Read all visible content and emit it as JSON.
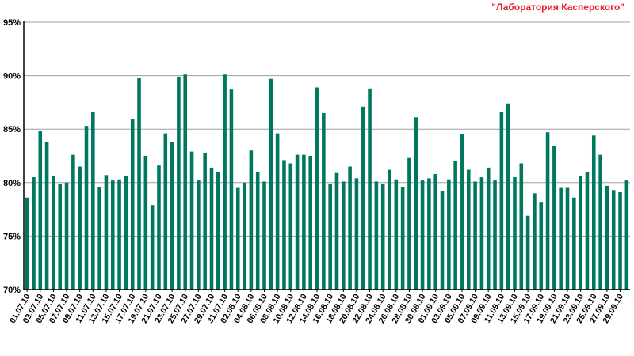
{
  "watermark": "\"Лаборатория Касперского\"",
  "colors": {
    "bar": "#00785f",
    "grid": "#a0a0a0",
    "axis": "#000000",
    "watermark": "#e8202a"
  },
  "chart_data": {
    "type": "bar",
    "title": "",
    "xlabel": "",
    "ylabel": "",
    "ylim": [
      70,
      95
    ],
    "y_ticks": [
      "70%",
      "75%",
      "80%",
      "85%",
      "90%",
      "95%"
    ],
    "y_tick_values": [
      70,
      75,
      80,
      85,
      90,
      95
    ],
    "grid": true,
    "categories": [
      "01.07.10",
      "02.07.10",
      "03.07.10",
      "04.07.10",
      "05.07.10",
      "06.07.10",
      "07.07.10",
      "08.07.10",
      "09.07.10",
      "10.07.10",
      "11.07.10",
      "12.07.10",
      "13.07.10",
      "14.07.10",
      "15.07.10",
      "16.07.10",
      "17.07.10",
      "18.07.10",
      "19.07.10",
      "20.07.10",
      "21.07.10",
      "22.07.10",
      "23.07.10",
      "24.07.10",
      "25.07.10",
      "26.07.10",
      "27.07.10",
      "28.07.10",
      "29.07.10",
      "30.07.10",
      "31.07.10",
      "01.08.10",
      "02.08.10",
      "03.08.10",
      "04.08.10",
      "05.08.10",
      "06.08.10",
      "07.08.10",
      "08.08.10",
      "09.08.10",
      "10.08.10",
      "11.08.10",
      "12.08.10",
      "13.08.10",
      "14.08.10",
      "15.08.10",
      "16.08.10",
      "17.08.10",
      "18.08.10",
      "19.08.10",
      "20.08.10",
      "21.08.10",
      "22.08.10",
      "23.08.10",
      "24.08.10",
      "25.08.10",
      "26.08.10",
      "27.08.10",
      "28.08.10",
      "29.08.10",
      "30.08.10",
      "31.08.10",
      "01.09.10",
      "02.09.10",
      "03.09.10",
      "04.09.10",
      "05.09.10",
      "06.09.10",
      "07.09.10",
      "08.09.10",
      "09.09.10",
      "10.09.10",
      "11.09.10",
      "12.09.10",
      "13.09.10",
      "14.09.10",
      "15.09.10",
      "16.09.10",
      "17.09.10",
      "18.09.10",
      "19.09.10",
      "20.09.10",
      "21.09.10",
      "22.09.10",
      "23.09.10",
      "24.09.10",
      "25.09.10",
      "26.09.10",
      "27.09.10",
      "28.09.10",
      "29.09.10",
      "30.09.10"
    ],
    "x_tick_labels": [
      "01.07.10",
      "03.07.10",
      "05.07.10",
      "07.07.10",
      "09.07.10",
      "11.07.10",
      "13.07.10",
      "15.07.10",
      "17.07.10",
      "19.07.10",
      "21.07.10",
      "23.07.10",
      "25.07.10",
      "27.07.10",
      "29.07.10",
      "31.07.10",
      "02.08.10",
      "04.08.10",
      "06.08.10",
      "08.08.10",
      "10.08.10",
      "12.08.10",
      "14.08.10",
      "16.08.10",
      "18.08.10",
      "20.08.10",
      "22.08.10",
      "24.08.10",
      "26.08.10",
      "28.08.10",
      "30.08.10",
      "01.09.10",
      "03.09.10",
      "05.09.10",
      "07.09.10",
      "09.09.10",
      "11.09.10",
      "13.09.10",
      "15.09.10",
      "17.09.10",
      "19.09.10",
      "21.09.10",
      "23.09.10",
      "25.09.10",
      "27.09.10",
      "29.09.10"
    ],
    "values": [
      78.6,
      80.5,
      84.8,
      83.8,
      80.6,
      79.9,
      80.0,
      82.6,
      81.5,
      85.3,
      86.6,
      79.6,
      80.7,
      80.2,
      80.3,
      80.6,
      85.9,
      89.8,
      82.5,
      77.9,
      81.6,
      84.6,
      83.8,
      89.9,
      90.1,
      82.9,
      80.2,
      82.8,
      81.4,
      81.0,
      90.1,
      88.7,
      79.5,
      80.0,
      83.0,
      81.0,
      80.1,
      89.7,
      84.6,
      82.1,
      81.8,
      82.6,
      82.6,
      82.5,
      88.9,
      86.5,
      79.9,
      80.9,
      80.1,
      81.5,
      80.4,
      87.1,
      88.8,
      80.1,
      79.9,
      81.2,
      80.3,
      79.6,
      82.3,
      86.1,
      80.2,
      80.4,
      80.8,
      79.2,
      80.3,
      82.0,
      84.5,
      81.2,
      80.1,
      80.5,
      81.4,
      80.2,
      86.6,
      87.4,
      80.5,
      81.8,
      76.9,
      79.0,
      78.2,
      84.7,
      83.4,
      79.5,
      79.5,
      78.6,
      80.6,
      81.0,
      84.4,
      82.6,
      79.7,
      79.3,
      79.1,
      80.2
    ]
  }
}
